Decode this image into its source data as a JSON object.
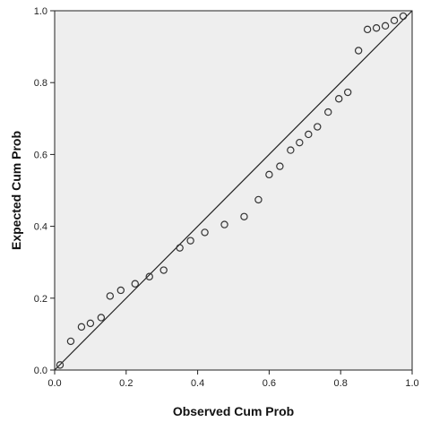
{
  "chart_data": {
    "type": "scatter",
    "xlabel": "Observed Cum Prob",
    "ylabel": "Expected Cum Prob",
    "xlim": [
      0.0,
      1.0
    ],
    "ylim": [
      0.0,
      1.0
    ],
    "xticks": [
      "0.0",
      "0.2",
      "0.4",
      "0.6",
      "0.8",
      "1.0"
    ],
    "yticks": [
      "0.0",
      "0.2",
      "0.4",
      "0.6",
      "0.8",
      "1.0"
    ],
    "grid": false,
    "reference_line": {
      "x": [
        0.0,
        1.0
      ],
      "y": [
        0.0,
        1.0
      ]
    },
    "colors": {
      "plot_background": "#eeeeee",
      "frame": "#222222",
      "marker": "#333333"
    },
    "points": [
      {
        "x": 0.015,
        "y": 0.014
      },
      {
        "x": 0.045,
        "y": 0.08
      },
      {
        "x": 0.075,
        "y": 0.12
      },
      {
        "x": 0.1,
        "y": 0.13
      },
      {
        "x": 0.13,
        "y": 0.146
      },
      {
        "x": 0.155,
        "y": 0.206
      },
      {
        "x": 0.185,
        "y": 0.222
      },
      {
        "x": 0.225,
        "y": 0.24
      },
      {
        "x": 0.265,
        "y": 0.26
      },
      {
        "x": 0.305,
        "y": 0.278
      },
      {
        "x": 0.35,
        "y": 0.34
      },
      {
        "x": 0.38,
        "y": 0.36
      },
      {
        "x": 0.42,
        "y": 0.383
      },
      {
        "x": 0.475,
        "y": 0.405
      },
      {
        "x": 0.53,
        "y": 0.427
      },
      {
        "x": 0.57,
        "y": 0.474
      },
      {
        "x": 0.6,
        "y": 0.544
      },
      {
        "x": 0.63,
        "y": 0.567
      },
      {
        "x": 0.66,
        "y": 0.612
      },
      {
        "x": 0.685,
        "y": 0.633
      },
      {
        "x": 0.71,
        "y": 0.656
      },
      {
        "x": 0.735,
        "y": 0.677
      },
      {
        "x": 0.765,
        "y": 0.718
      },
      {
        "x": 0.795,
        "y": 0.755
      },
      {
        "x": 0.82,
        "y": 0.773
      },
      {
        "x": 0.85,
        "y": 0.889
      },
      {
        "x": 0.875,
        "y": 0.948
      },
      {
        "x": 0.9,
        "y": 0.952
      },
      {
        "x": 0.925,
        "y": 0.958
      },
      {
        "x": 0.95,
        "y": 0.973
      },
      {
        "x": 0.975,
        "y": 0.985
      }
    ]
  }
}
